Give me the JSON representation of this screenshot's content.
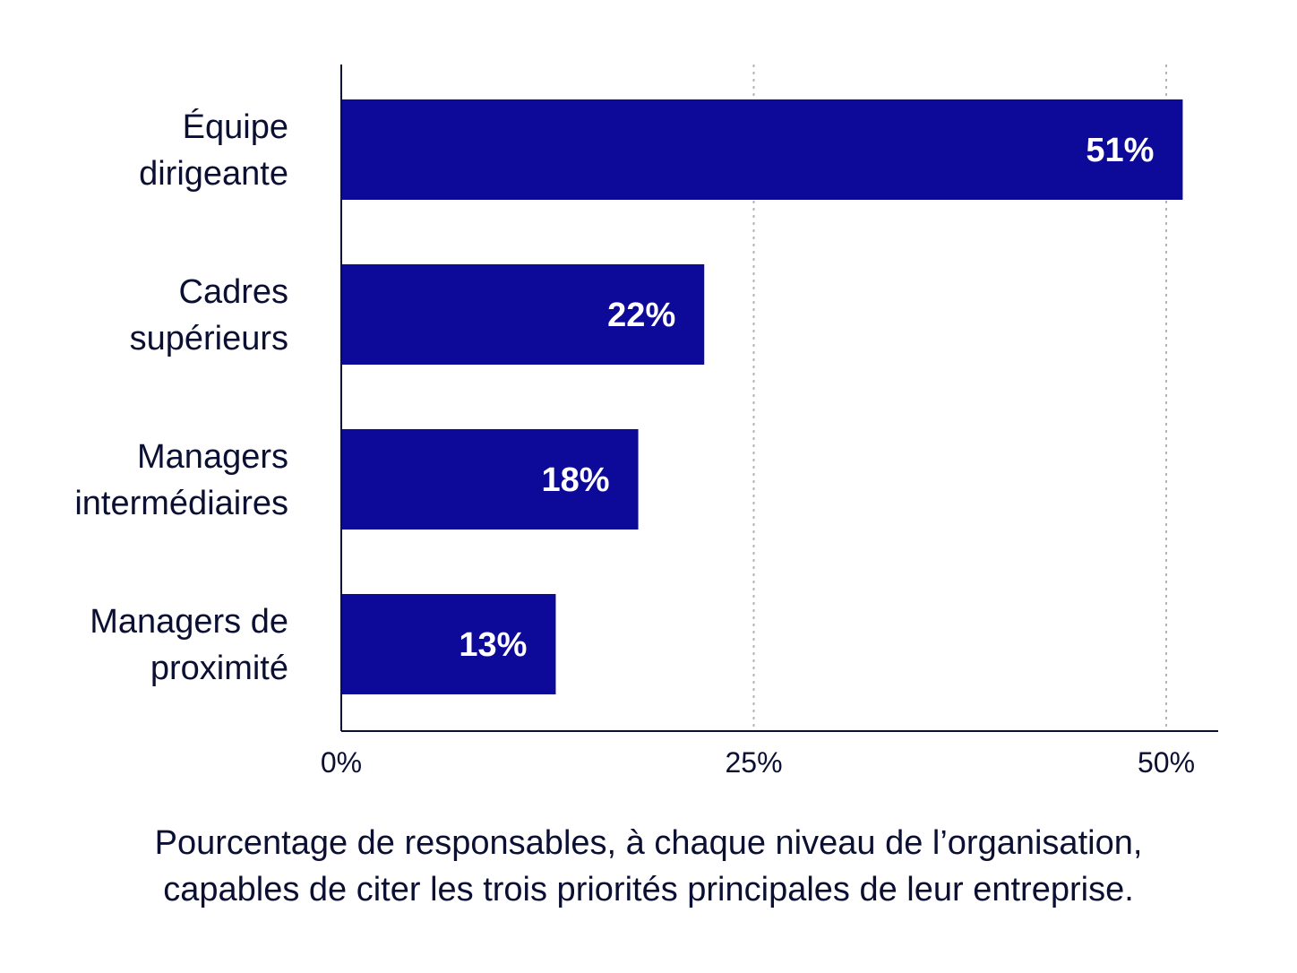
{
  "chart_data": {
    "type": "bar",
    "orientation": "horizontal",
    "categories": [
      [
        "Équipe",
        "dirigeante"
      ],
      [
        "Cadres",
        "supérieurs"
      ],
      [
        "Managers",
        "intermédiaires"
      ],
      [
        "Managers de",
        "proximité"
      ]
    ],
    "values": [
      51,
      22,
      18,
      13
    ],
    "value_labels": [
      "51%",
      "22%",
      "18%",
      "13%"
    ],
    "x_ticks": [
      0,
      25,
      50
    ],
    "x_tick_labels": [
      "0%",
      "25%",
      "50%"
    ],
    "xlim": [
      0,
      50
    ],
    "grid": "vertical dashed",
    "bar_color": "#0e0a99",
    "caption_lines": [
      "Pourcentage de responsables, à chaque niveau de l’organisation,",
      "capables de citer les trois priorités principales de leur entreprise."
    ]
  }
}
